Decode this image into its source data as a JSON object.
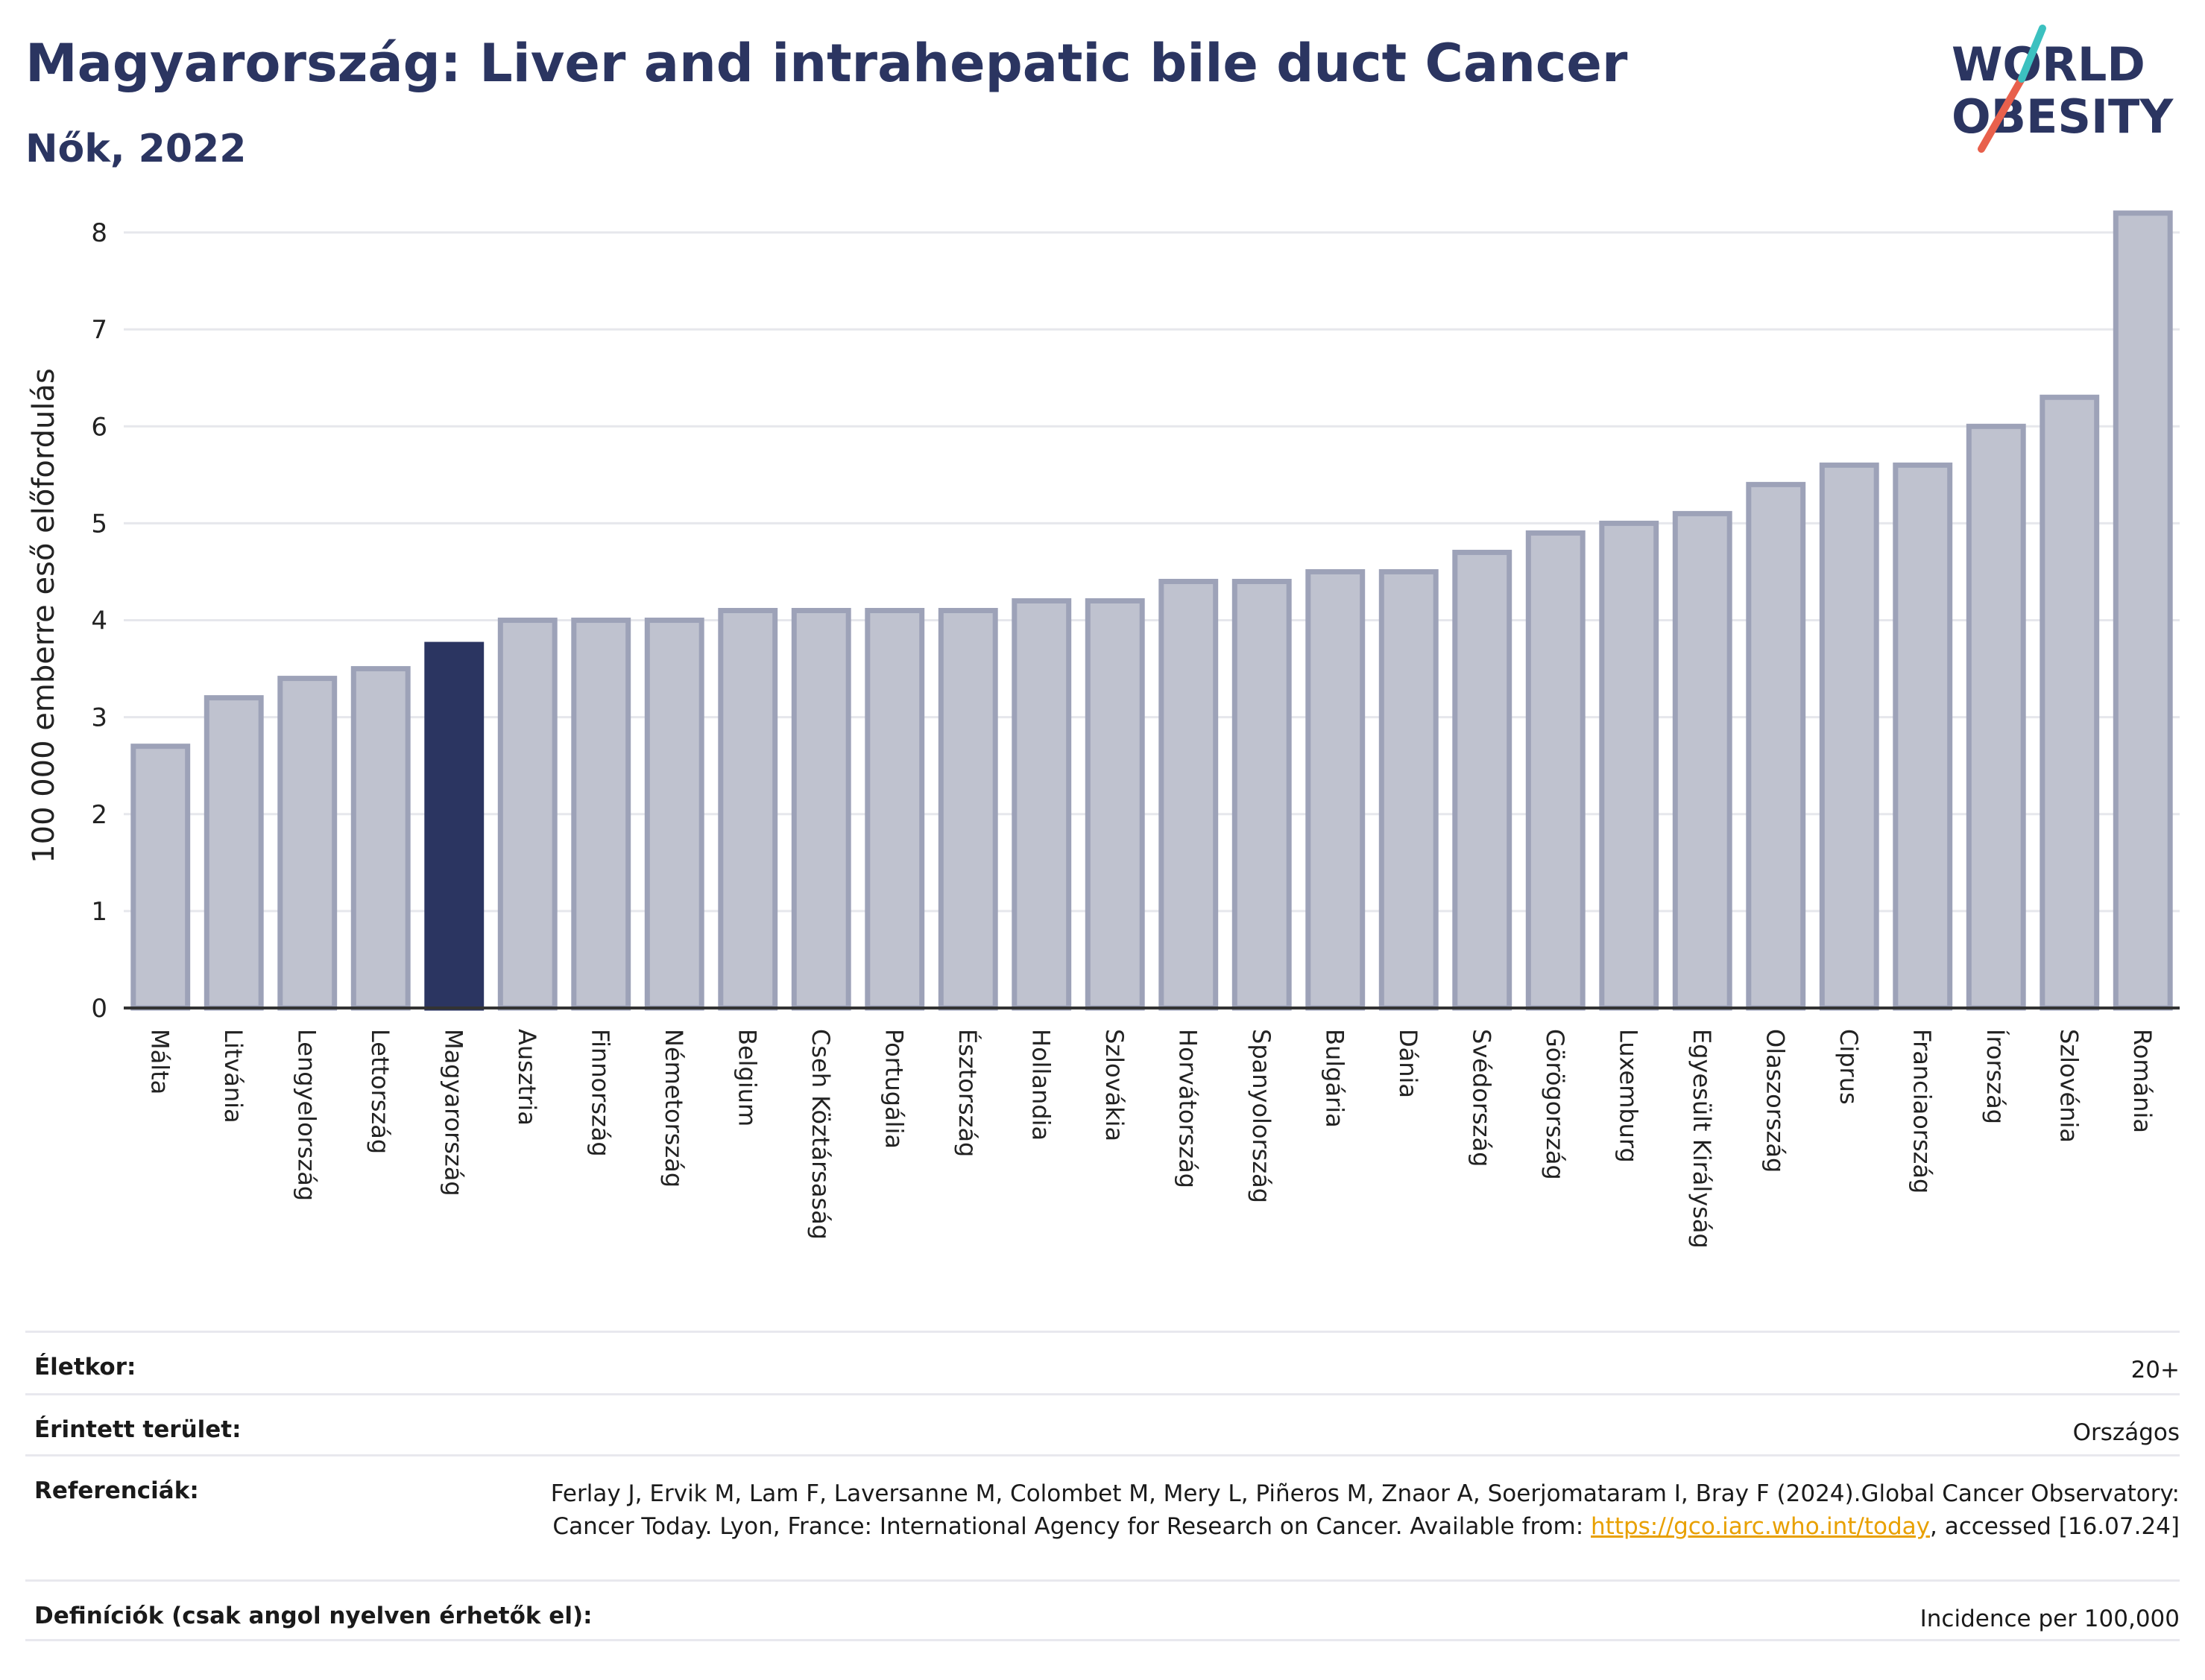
{
  "header": {
    "title": "Magyarország: Liver and intrahepatic bile duct Cancer",
    "subtitle": "Nők, 2022"
  },
  "logo": {
    "line1": "WORLD",
    "line2": "OBESITY",
    "colors": {
      "text": "#2b3561",
      "slash_red": "#e8604c",
      "slash_teal": "#3cc1c0"
    }
  },
  "chart_data": {
    "type": "bar",
    "ylabel": "100 000 emberre eső előfordulás",
    "ylim": [
      0,
      8.4
    ],
    "yticks": [
      0,
      1,
      2,
      3,
      4,
      5,
      6,
      7,
      8
    ],
    "grid": true,
    "highlight": "Magyarország",
    "colors": {
      "bar": "#bfc2cf",
      "bar_edge": "#9da2b8",
      "highlight": "#2b3561",
      "grid": "#e6e7ec",
      "axis": "#333333"
    },
    "categories": [
      "Málta",
      "Litvánia",
      "Lengyelország",
      "Lettország",
      "Magyarország",
      "Ausztria",
      "Finnország",
      "Németország",
      "Belgium",
      "Cseh Köztársaság",
      "Portugália",
      "Észtország",
      "Hollandia",
      "Szlovákia",
      "Horvátország",
      "Spanyolország",
      "Bulgária",
      "Dánia",
      "Svédország",
      "Görögország",
      "Luxemburg",
      "Egyesült Királyság",
      "Olaszország",
      "Ciprus",
      "Franciaország",
      "Írország",
      "Szlovénia",
      "Románia"
    ],
    "values": [
      2.7,
      3.2,
      3.4,
      3.5,
      3.75,
      4.0,
      4.0,
      4.0,
      4.1,
      4.1,
      4.1,
      4.1,
      4.2,
      4.2,
      4.4,
      4.4,
      4.5,
      4.5,
      4.7,
      4.9,
      5.0,
      5.1,
      5.4,
      5.6,
      5.6,
      6.0,
      6.3,
      8.2
    ]
  },
  "info": {
    "age": {
      "label": "Életkor:",
      "value": "20+"
    },
    "area": {
      "label": "Érintett terület:",
      "value": "Országos"
    },
    "refs": {
      "label": "Referenciák:",
      "text_before": "Ferlay J, Ervik M, Lam F, Laversanne M, Colombet M, Mery L, Piñeros M, Znaor A, Soerjomataram I, Bray F (2024).Global Cancer Observatory: Cancer Today. Lyon, France: International Agency for Research on Cancer. Available from: ",
      "link": "https://gco.iarc.who.int/today",
      "text_after": ", accessed [16.07.24]"
    },
    "defs": {
      "label": "Definíciók (csak angol nyelven érhetők el):",
      "value": "Incidence per 100,000"
    }
  }
}
